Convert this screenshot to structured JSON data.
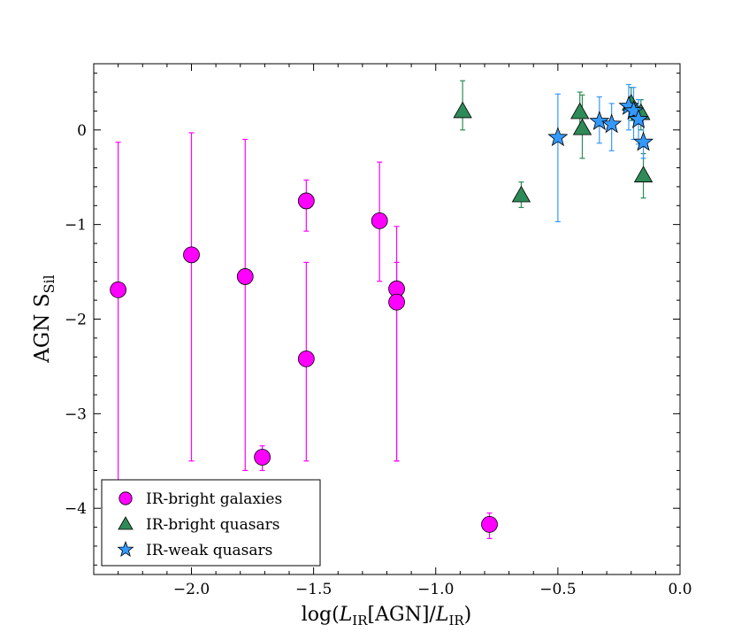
{
  "chart_data": {
    "type": "scatter",
    "title": "",
    "xlabel": "log(L_IR[AGN]/L_IR)",
    "ylabel": "AGN S_Sil",
    "xlim": [
      -2.4,
      0.0
    ],
    "ylim": [
      -4.7,
      0.7
    ],
    "xticks": [
      -2.0,
      -1.5,
      -1.0,
      -0.5,
      0.0
    ],
    "xtick_labels": [
      "−2.0",
      "−1.5",
      "−1.0",
      "−0.5",
      "0.0"
    ],
    "yticks": [
      0,
      -1,
      -2,
      -3,
      -4
    ],
    "ytick_labels": [
      "0",
      "−1",
      "−2",
      "−3",
      "−4"
    ],
    "grid": false,
    "legend_position": "lower-left",
    "series": [
      {
        "name": "IR-bright galaxies",
        "marker": "circle",
        "color": "#ff00ff",
        "errcolor": "#ff00ff",
        "points": [
          {
            "x": -2.3,
            "y": -1.69,
            "lo": -3.7,
            "hi": -0.13
          },
          {
            "x": -2.0,
            "y": -1.32,
            "lo": -3.5,
            "hi": -0.03
          },
          {
            "x": -1.78,
            "y": -1.55,
            "lo": -3.6,
            "hi": -0.1
          },
          {
            "x": -1.71,
            "y": -3.46,
            "lo": -3.6,
            "hi": -3.34
          },
          {
            "x": -1.53,
            "y": -0.75,
            "lo": -1.07,
            "hi": -0.53
          },
          {
            "x": -1.53,
            "y": -2.42,
            "lo": -3.5,
            "hi": -1.4
          },
          {
            "x": -1.23,
            "y": -0.96,
            "lo": -1.6,
            "hi": -0.34
          },
          {
            "x": -1.16,
            "y": -1.68,
            "lo": -3.5,
            "hi": -1.02
          },
          {
            "x": -1.16,
            "y": -1.82,
            "lo": -3.5,
            "hi": -1.4
          },
          {
            "x": -0.78,
            "y": -4.17,
            "lo": -4.32,
            "hi": -4.05
          }
        ]
      },
      {
        "name": "IR-bright quasars",
        "marker": "triangle",
        "color": "#2e8b57",
        "errcolor": "#2e8b57",
        "points": [
          {
            "x": -0.89,
            "y": 0.2,
            "lo": 0.0,
            "hi": 0.52
          },
          {
            "x": -0.65,
            "y": -0.69,
            "lo": -0.82,
            "hi": -0.55
          },
          {
            "x": -0.41,
            "y": 0.19,
            "lo": 0.0,
            "hi": 0.4
          },
          {
            "x": -0.4,
            "y": 0.02,
            "lo": -0.3,
            "hi": 0.37
          },
          {
            "x": -0.2,
            "y": 0.28,
            "lo": 0.1,
            "hi": 0.45
          },
          {
            "x": -0.16,
            "y": 0.18,
            "lo": 0.0,
            "hi": 0.32
          },
          {
            "x": -0.15,
            "y": -0.48,
            "lo": -0.72,
            "hi": -0.25
          }
        ]
      },
      {
        "name": "IR-weak quasars",
        "marker": "star",
        "color": "#3399ff",
        "errcolor": "#3399ff",
        "points": [
          {
            "x": -0.5,
            "y": -0.08,
            "lo": -0.97,
            "hi": 0.38
          },
          {
            "x": -0.33,
            "y": 0.09,
            "lo": -0.14,
            "hi": 0.35
          },
          {
            "x": -0.28,
            "y": 0.06,
            "lo": -0.22,
            "hi": 0.28
          },
          {
            "x": -0.21,
            "y": 0.25,
            "lo": 0.0,
            "hi": 0.48
          },
          {
            "x": -0.19,
            "y": 0.2,
            "lo": -0.1,
            "hi": 0.45
          },
          {
            "x": -0.17,
            "y": 0.11,
            "lo": -0.15,
            "hi": 0.32
          },
          {
            "x": -0.15,
            "y": -0.13,
            "lo": -0.3,
            "hi": 0.15
          }
        ]
      }
    ]
  }
}
